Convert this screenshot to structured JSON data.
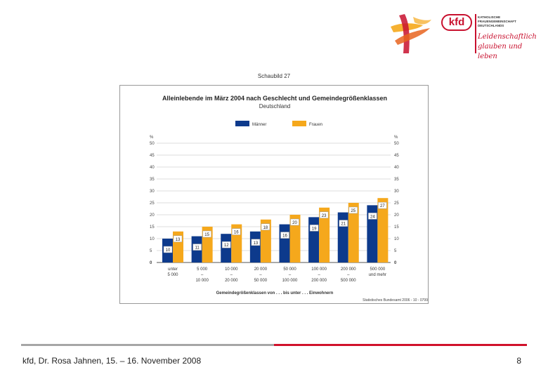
{
  "header": {
    "logo_text": "kfd",
    "org_lines": [
      "KATHOLISCHE",
      "FRAUENGEMEINSCHAFT",
      "DEUTSCHLANDS"
    ],
    "motto_lines": [
      "Leidenschaftlich",
      "glauben und leben"
    ]
  },
  "figure_label": "Schaubild 27",
  "chart_data": {
    "type": "bar",
    "title": "Alleinlebende im März 2004 nach Geschlecht und Gemeindegrößenklassen",
    "subtitle": "Deutschland",
    "categories": [
      [
        "unter",
        "5 000"
      ],
      [
        "5 000",
        "–",
        "10 000"
      ],
      [
        "10 000",
        "–",
        "20 000"
      ],
      [
        "20 000",
        "–",
        "50 000"
      ],
      [
        "50 000",
        "–",
        "100 000"
      ],
      [
        "100 000",
        "–",
        "200 000"
      ],
      [
        "200 000",
        "–",
        "500 000"
      ],
      [
        "500 000",
        "und mehr"
      ]
    ],
    "series": [
      {
        "name": "Männer",
        "color": "#0d3a8c",
        "values": [
          10,
          11,
          12,
          13,
          16,
          19,
          21,
          24
        ]
      },
      {
        "name": "Frauen",
        "color": "#f5a81c",
        "values": [
          13,
          15,
          16,
          18,
          20,
          23,
          25,
          27
        ]
      }
    ],
    "ylim": [
      0,
      50
    ],
    "yticks": [
      0,
      5,
      10,
      15,
      20,
      25,
      30,
      35,
      40,
      45,
      50
    ],
    "yunit": "%",
    "xlabel": "Gemeindegrößenklassen von . . . bis unter . . . Einwohnern",
    "source": "Statistisches Bundesamt 2006 - 10 - 0799",
    "grid": true,
    "legend": "top-center"
  },
  "footer": {
    "text": "kfd, Dr. Rosa Jahnen, 15. – 16. November 2008",
    "page": "8"
  },
  "colors": {
    "accent_red": "#d0112b",
    "divider_gray": "#a6a6a6"
  }
}
